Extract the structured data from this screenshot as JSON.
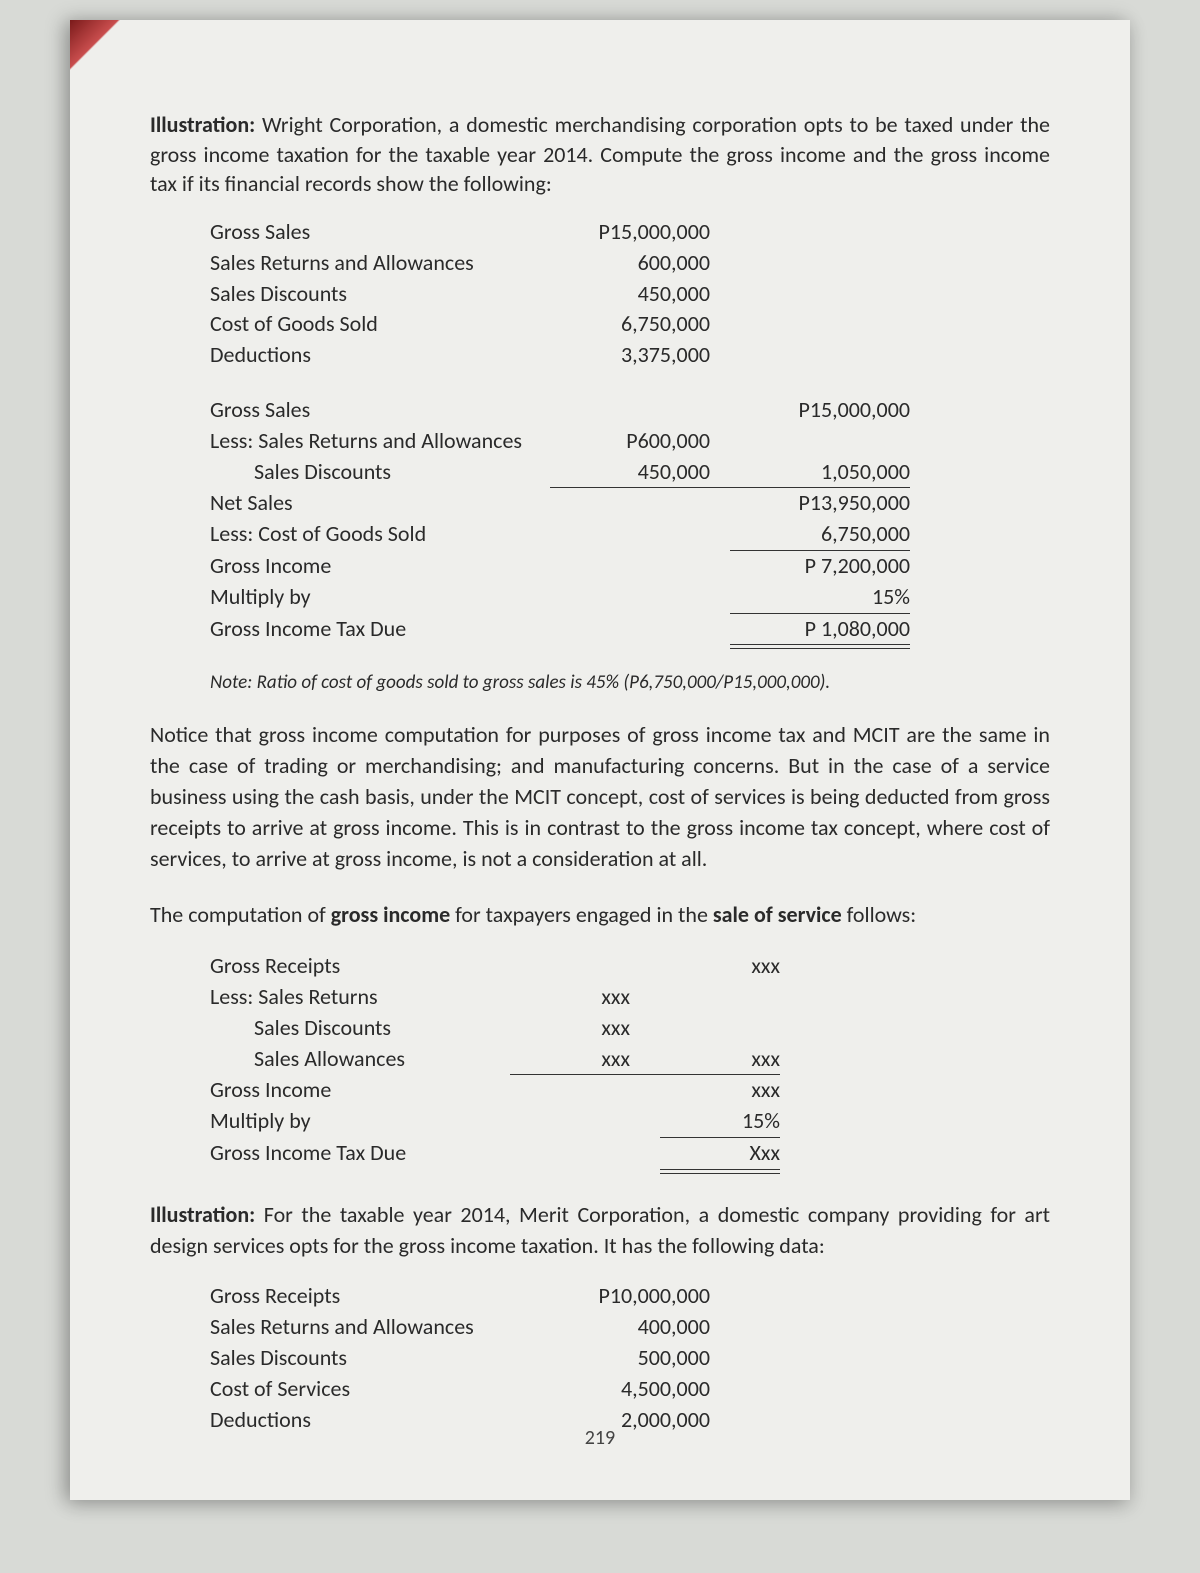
{
  "intro1": {
    "prefix": "Illustration:",
    "text": " Wright Corporation, a domestic merchandising corporation opts to be taxed under the gross income taxation for the taxable year 2014. Compute the gross income and the gross income tax if its financial records show the following:"
  },
  "data1": [
    {
      "label": "Gross Sales",
      "a": "P15,000,000"
    },
    {
      "label": "Sales Returns and Allowances",
      "a": "600,000"
    },
    {
      "label": "Sales Discounts",
      "a": "450,000"
    },
    {
      "label": "Cost of Goods Sold",
      "a": "6,750,000"
    },
    {
      "label": "Deductions",
      "a": "3,375,000"
    }
  ],
  "calc1": [
    {
      "label": "Gross Sales",
      "a": "",
      "b": "P15,000,000",
      "indent": false,
      "ua": false,
      "ub": false
    },
    {
      "label": "Less: Sales Returns and Allowances",
      "a": "P600,000",
      "b": "",
      "indent": false,
      "ua": false,
      "ub": false
    },
    {
      "label": "Sales Discounts",
      "a": "450,000",
      "b": "1,050,000",
      "indent": true,
      "ua": true,
      "ub": true
    },
    {
      "label": "Net Sales",
      "a": "",
      "b": "P13,950,000",
      "indent": false,
      "ua": false,
      "ub": false
    },
    {
      "label": "Less: Cost of Goods Sold",
      "a": "",
      "b": "6,750,000",
      "indent": false,
      "ua": false,
      "ub": true
    },
    {
      "label": "Gross Income",
      "a": "",
      "b": "P  7,200,000",
      "indent": false,
      "ua": false,
      "ub": false
    },
    {
      "label": "Multiply by",
      "a": "",
      "b": "15%",
      "indent": false,
      "ua": false,
      "ub": true
    },
    {
      "label": "Gross Income Tax Due",
      "a": "",
      "b": "P  1,080,000",
      "indent": false,
      "ua": false,
      "ub": false,
      "dbl": true
    }
  ],
  "note1": "Note:  Ratio of cost of goods sold to gross sales is 45% (P6,750,000/P15,000,000).",
  "para1": "Notice that gross income computation for purposes of gross income tax and MCIT are the same in the case of trading or merchandising; and manufacturing concerns.  But in the case of a service business using the cash basis, under the MCIT concept, cost of services is being deducted from gross receipts to arrive at gross income.  This is in contrast to the gross income tax concept, where cost of services, to arrive at gross income, is not a consideration at all.",
  "para2_pre": "The computation of ",
  "para2_b1": "gross income",
  "para2_mid": " for taxpayers engaged in the ",
  "para2_b2": "sale of service",
  "para2_post": " follows:",
  "calc2": [
    {
      "label": "Gross Receipts",
      "a": "",
      "b": "xxx",
      "indent": false,
      "ua": false,
      "ub": false
    },
    {
      "label": "Less: Sales Returns",
      "a": "xxx",
      "b": "",
      "indent": false,
      "ua": false,
      "ub": false
    },
    {
      "label": "Sales Discounts",
      "a": "xxx",
      "b": "",
      "indent": true,
      "ua": false,
      "ub": false
    },
    {
      "label": "Sales Allowances",
      "a": "xxx",
      "b": "xxx",
      "indent": true,
      "ua": true,
      "ub": true
    },
    {
      "label": "Gross Income",
      "a": "",
      "b": "xxx",
      "indent": false,
      "ua": false,
      "ub": false
    },
    {
      "label": "Multiply by",
      "a": "",
      "b": "15%",
      "indent": false,
      "ua": false,
      "ub": true
    },
    {
      "label": "Gross Income Tax Due",
      "a": "",
      "b": "Xxx",
      "indent": false,
      "ua": false,
      "ub": false,
      "dbl": true
    }
  ],
  "intro2": {
    "prefix": "Illustration:",
    "text": " For the taxable year 2014, Merit Corporation, a domestic company providing for art design services opts for the gross income taxation.  It has the following data:"
  },
  "data2": [
    {
      "label": "Gross Receipts",
      "a": "P10,000,000"
    },
    {
      "label": "Sales Returns and Allowances",
      "a": "400,000"
    },
    {
      "label": "Sales Discounts",
      "a": "500,000"
    },
    {
      "label": "Cost of Services",
      "a": "4,500,000"
    },
    {
      "label": "Deductions",
      "a": "2,000,000"
    }
  ],
  "pageNumber": "219"
}
